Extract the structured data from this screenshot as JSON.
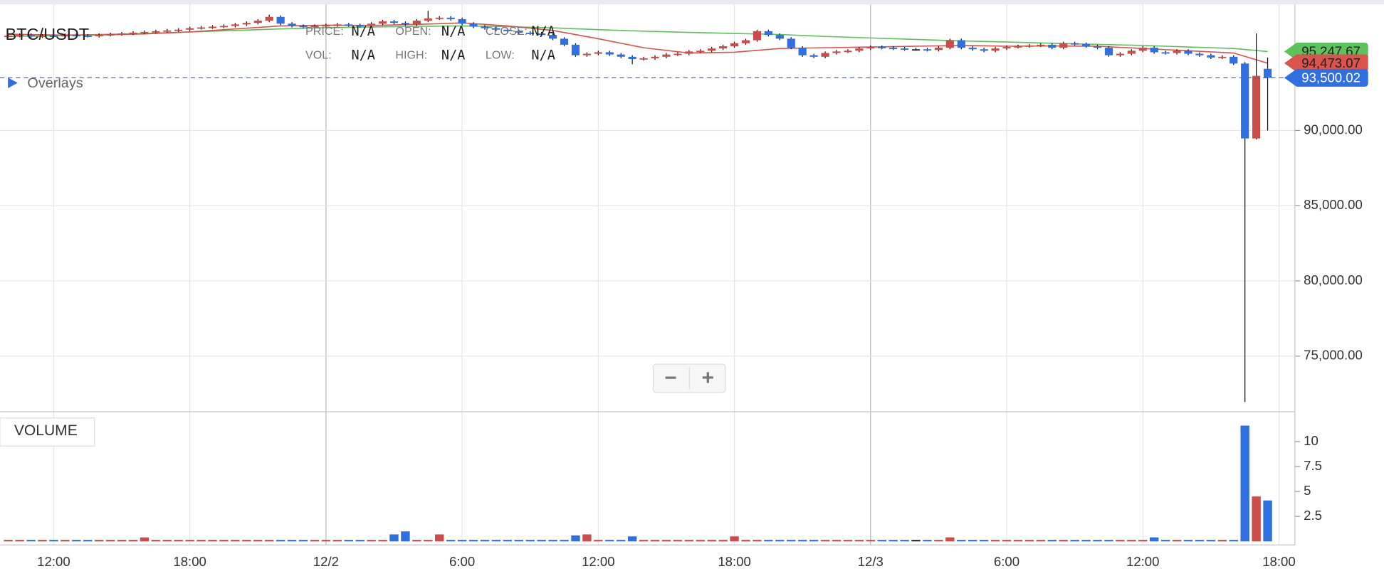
{
  "chart_data": {
    "type": "candlestick",
    "title": "BTC/USDT",
    "info": [
      [
        {
          "label": "PRICE:",
          "value": "N/A"
        },
        {
          "label": "OPEN:",
          "value": "N/A"
        },
        {
          "label": "CLOSE:",
          "value": "N/A"
        }
      ],
      [
        {
          "label": "VOL:",
          "value": "N/A"
        },
        {
          "label": "HIGH:",
          "value": "N/A"
        },
        {
          "label": "LOW:",
          "value": "N/A"
        }
      ]
    ],
    "overlays_label": "Overlays",
    "zoom": [
      "−",
      "+"
    ],
    "up_color": "#cc4b4b",
    "down_color": "#2f6fe0",
    "flat_color": "#222222",
    "xlim": [
      "12/1 09:38",
      "12/3 18:42"
    ],
    "xticks": [
      {
        "value": "12/1 12:00",
        "label": "12:00"
      },
      {
        "value": "12/1 18:00",
        "label": "18:00"
      },
      {
        "value": "12/2 00:00",
        "label": "12/2"
      },
      {
        "value": "12/2 06:00",
        "label": "6:00"
      },
      {
        "value": "12/2 12:00",
        "label": "12:00"
      },
      {
        "value": "12/2 18:00",
        "label": "18:00"
      },
      {
        "value": "12/3 00:00",
        "label": "12/3"
      },
      {
        "value": "12/3 06:00",
        "label": "6:00"
      },
      {
        "value": "12/3 12:00",
        "label": "12:00"
      },
      {
        "value": "12/3 18:00",
        "label": "18:00"
      }
    ],
    "ylim": [
      71360,
      98380
    ],
    "yticks": [
      {
        "value": 75000,
        "label": "75,000.00"
      },
      {
        "value": 80000,
        "label": "80,000.00"
      },
      {
        "value": 85000,
        "label": "85,000.00"
      },
      {
        "value": 90000,
        "label": "90,000.00"
      }
    ],
    "x": [
      "12/1 10:00",
      "12/1 10:30",
      "12/1 11:00",
      "12/1 11:30",
      "12/1 12:00",
      "12/1 12:30",
      "12/1 13:00",
      "12/1 13:30",
      "12/1 14:00",
      "12/1 14:30",
      "12/1 15:00",
      "12/1 15:30",
      "12/1 16:00",
      "12/1 16:30",
      "12/1 17:00",
      "12/1 17:30",
      "12/1 18:00",
      "12/1 18:30",
      "12/1 19:00",
      "12/1 19:30",
      "12/1 20:00",
      "12/1 20:30",
      "12/1 21:00",
      "12/1 21:30",
      "12/1 22:00",
      "12/1 22:30",
      "12/1 23:00",
      "12/1 23:30",
      "12/2 00:00",
      "12/2 00:30",
      "12/2 01:00",
      "12/2 01:30",
      "12/2 02:00",
      "12/2 02:30",
      "12/2 03:00",
      "12/2 03:30",
      "12/2 04:00",
      "12/2 04:30",
      "12/2 05:00",
      "12/2 05:30",
      "12/2 06:00",
      "12/2 06:30",
      "12/2 07:00",
      "12/2 07:30",
      "12/2 08:00",
      "12/2 08:30",
      "12/2 09:00",
      "12/2 09:30",
      "12/2 10:00",
      "12/2 10:30",
      "12/2 11:00",
      "12/2 11:30",
      "12/2 12:00",
      "12/2 12:30",
      "12/2 13:00",
      "12/2 13:30",
      "12/2 14:00",
      "12/2 14:30",
      "12/2 15:00",
      "12/2 15:30",
      "12/2 16:00",
      "12/2 16:30",
      "12/2 17:00",
      "12/2 17:30",
      "12/2 18:00",
      "12/2 18:30",
      "12/2 19:00",
      "12/2 19:30",
      "12/2 20:00",
      "12/2 20:30",
      "12/2 21:00",
      "12/2 21:30",
      "12/2 22:00",
      "12/2 22:30",
      "12/2 23:00",
      "12/2 23:30",
      "12/3 00:00",
      "12/3 00:30",
      "12/3 01:00",
      "12/3 01:30",
      "12/3 02:00",
      "12/3 02:30",
      "12/3 03:00",
      "12/3 03:30",
      "12/3 04:00",
      "12/3 04:30",
      "12/3 05:00",
      "12/3 05:30",
      "12/3 06:00",
      "12/3 06:30",
      "12/3 07:00",
      "12/3 07:30",
      "12/3 08:00",
      "12/3 08:30",
      "12/3 09:00",
      "12/3 09:30",
      "12/3 10:00",
      "12/3 10:30",
      "12/3 11:00",
      "12/3 11:30",
      "12/3 12:00",
      "12/3 12:30",
      "12/3 13:00",
      "12/3 13:30",
      "12/3 14:00",
      "12/3 14:30",
      "12/3 15:00",
      "12/3 15:30",
      "12/3 16:00",
      "12/3 16:30",
      "12/3 17:00",
      "12/3 17:30"
    ],
    "open": [
      96280,
      96300,
      96350,
      96250,
      96300,
      96250,
      96350,
      96300,
      96280,
      96350,
      96400,
      96450,
      96500,
      96550,
      96600,
      96650,
      96700,
      96800,
      96850,
      96900,
      96950,
      97050,
      97150,
      97300,
      97550,
      97100,
      96950,
      96900,
      96950,
      97000,
      97050,
      97000,
      96950,
      97100,
      97250,
      97150,
      97050,
      97300,
      97450,
      97500,
      97400,
      97100,
      96900,
      96800,
      96700,
      96600,
      96500,
      96450,
      96350,
      96100,
      95700,
      95000,
      95100,
      95200,
      95050,
      94900,
      94750,
      94800,
      94900,
      95050,
      95100,
      95250,
      95300,
      95450,
      95600,
      95800,
      96000,
      96600,
      96350,
      96100,
      95500,
      95000,
      94900,
      95150,
      95250,
      95300,
      95450,
      95550,
      95500,
      95450,
      95400,
      95400,
      95350,
      95500,
      96000,
      95500,
      95400,
      95300,
      95450,
      95550,
      95600,
      95650,
      95700,
      95500,
      95800,
      95750,
      95600,
      95500,
      95000,
      95100,
      95300,
      95500,
      95200,
      95150,
      95300,
      95100,
      95000,
      94850,
      94900,
      94450,
      89470,
      94100
    ],
    "high": [
      96400,
      96450,
      96450,
      96400,
      96400,
      96450,
      96450,
      96400,
      96450,
      96500,
      96550,
      96600,
      96650,
      96700,
      96750,
      96800,
      96900,
      96950,
      97000,
      97050,
      97150,
      97250,
      97400,
      97700,
      97650,
      97200,
      97050,
      97050,
      97100,
      97150,
      97150,
      97100,
      97200,
      97350,
      97350,
      97250,
      97400,
      97950,
      97600,
      97600,
      97500,
      97200,
      97000,
      96900,
      96800,
      96700,
      96600,
      96550,
      96450,
      96200,
      95800,
      95200,
      95300,
      95300,
      95150,
      95000,
      94900,
      95000,
      95150,
      95200,
      95350,
      95400,
      95550,
      95700,
      95900,
      96100,
      96700,
      96700,
      96450,
      96200,
      95600,
      95100,
      95250,
      95350,
      95400,
      95550,
      95650,
      95650,
      95600,
      95550,
      95500,
      95500,
      95600,
      96100,
      96100,
      95600,
      95500,
      95550,
      95650,
      95700,
      95750,
      95800,
      95800,
      95900,
      95900,
      95850,
      95700,
      95600,
      95200,
      95400,
      95600,
      95600,
      95300,
      95400,
      95400,
      95200,
      95100,
      95000,
      95000,
      94550,
      96450,
      94850
    ],
    "low": [
      96180,
      96200,
      96150,
      96150,
      96150,
      96150,
      96200,
      96180,
      96180,
      96250,
      96300,
      96350,
      96400,
      96450,
      96500,
      96550,
      96600,
      96700,
      96750,
      96800,
      96850,
      96950,
      97050,
      97200,
      97000,
      96850,
      96800,
      96800,
      96850,
      96900,
      96900,
      96850,
      96850,
      97000,
      97050,
      96950,
      96950,
      97200,
      97350,
      97300,
      97000,
      96800,
      96700,
      96600,
      96500,
      96400,
      96350,
      96250,
      96000,
      95600,
      94900,
      94900,
      95000,
      94950,
      94800,
      94400,
      94650,
      94700,
      94800,
      94950,
      95000,
      95150,
      95200,
      95350,
      95500,
      95700,
      95900,
      96250,
      96000,
      95400,
      94900,
      94800,
      94800,
      95050,
      95150,
      95200,
      95350,
      95400,
      95350,
      95300,
      95300,
      95250,
      95250,
      95400,
      95400,
      95300,
      95200,
      95200,
      95350,
      95450,
      95500,
      95550,
      95400,
      95400,
      95650,
      95500,
      95400,
      94900,
      94900,
      95000,
      95200,
      95100,
      95050,
      95050,
      95000,
      94900,
      94750,
      94750,
      94350,
      71950,
      89400,
      90000
    ],
    "close": [
      96300,
      96350,
      96250,
      96300,
      96250,
      96350,
      96300,
      96280,
      96350,
      96400,
      96450,
      96500,
      96550,
      96600,
      96650,
      96700,
      96800,
      96850,
      96900,
      96950,
      97050,
      97150,
      97300,
      97550,
      97100,
      96950,
      96900,
      96950,
      97000,
      97050,
      97000,
      96950,
      97100,
      97250,
      97150,
      97050,
      97300,
      97450,
      97500,
      97400,
      97100,
      96900,
      96800,
      96700,
      96600,
      96500,
      96450,
      96350,
      96100,
      95700,
      95000,
      95100,
      95200,
      95050,
      94900,
      94750,
      94800,
      94900,
      95050,
      95100,
      95250,
      95300,
      95450,
      95600,
      95800,
      96000,
      96600,
      96350,
      96100,
      95500,
      95000,
      94900,
      95150,
      95250,
      95300,
      95450,
      95550,
      95500,
      95450,
      95400,
      95400,
      95350,
      95500,
      96000,
      95500,
      95400,
      95300,
      95450,
      95550,
      95600,
      95650,
      95700,
      95500,
      95800,
      95750,
      95600,
      95500,
      95000,
      95100,
      95300,
      95500,
      95200,
      95150,
      95300,
      95100,
      95000,
      94850,
      94900,
      94450,
      89470,
      93630,
      93500
    ],
    "overlays": [
      {
        "color": "#5cc25c",
        "x": [
          "12/1 10:00",
          "12/1 12:00",
          "12/1 14:00",
          "12/1 16:00",
          "12/1 18:00",
          "12/1 20:00",
          "12/1 22:00",
          "12/2 00:00",
          "12/2 02:00",
          "12/2 04:00",
          "12/2 06:00",
          "12/2 08:00",
          "12/2 10:00",
          "12/2 12:00",
          "12/2 14:00",
          "12/2 16:00",
          "12/2 18:00",
          "12/2 20:00",
          "12/2 22:00",
          "12/3 00:00",
          "12/3 02:00",
          "12/3 04:00",
          "12/3 06:00",
          "12/3 08:00",
          "12/3 10:00",
          "12/3 12:00",
          "12/3 14:00",
          "12/3 16:00",
          "12/3 17:30"
        ],
        "values": [
          96250,
          96300,
          96380,
          96450,
          96550,
          96650,
          96750,
          96830,
          96880,
          96920,
          96950,
          96900,
          96820,
          96700,
          96600,
          96520,
          96450,
          96380,
          96250,
          96150,
          96050,
          95950,
          95880,
          95800,
          95720,
          95650,
          95550,
          95450,
          95247.67
        ],
        "last_label": "95,247.67"
      },
      {
        "color": "#d9534f",
        "x": [
          "12/1 10:00",
          "12/1 12:00",
          "12/1 14:00",
          "12/1 16:00",
          "12/1 18:00",
          "12/1 20:00",
          "12/1 22:00",
          "12/2 00:00",
          "12/2 02:00",
          "12/2 04:00",
          "12/2 06:00",
          "12/2 08:00",
          "12/2 10:00",
          "12/2 12:00",
          "12/2 14:00",
          "12/2 16:00",
          "12/2 18:00",
          "12/2 20:00",
          "12/2 22:00",
          "12/3 00:00",
          "12/3 02:00",
          "12/3 04:00",
          "12/3 06:00",
          "12/3 08:00",
          "12/3 10:00",
          "12/3 12:00",
          "12/3 14:00",
          "12/3 16:00",
          "12/3 17:30"
        ],
        "values": [
          96400,
          96350,
          96350,
          96420,
          96550,
          96750,
          96950,
          97000,
          96980,
          97050,
          97150,
          96950,
          96650,
          96100,
          95500,
          95150,
          95200,
          95450,
          95500,
          95550,
          95600,
          95650,
          95600,
          95620,
          95600,
          95450,
          95300,
          95150,
          94473.07
        ],
        "last_label": "94,473.07"
      }
    ],
    "last_price": {
      "value": 93500.02,
      "label": "93,500.02",
      "color": "#2f6fe0"
    },
    "volume": {
      "title": "VOLUME",
      "ylim": [
        0,
        12.9
      ],
      "yticks": [
        2.5,
        5,
        7.5,
        10
      ],
      "values": [
        0.15,
        0.15,
        0.15,
        0.15,
        0.15,
        0.15,
        0.15,
        0.15,
        0.15,
        0.15,
        0.15,
        0.15,
        0.4,
        0.15,
        0.15,
        0.15,
        0.15,
        0.15,
        0.15,
        0.15,
        0.15,
        0.15,
        0.15,
        0.15,
        0.15,
        0.15,
        0.15,
        0.15,
        0.15,
        0.15,
        0.15,
        0.15,
        0.15,
        0.15,
        0.7,
        1.0,
        0.15,
        0.15,
        0.7,
        0.15,
        0.15,
        0.15,
        0.15,
        0.15,
        0.15,
        0.15,
        0.15,
        0.15,
        0.15,
        0.15,
        0.6,
        0.7,
        0.15,
        0.15,
        0.15,
        0.5,
        0.15,
        0.15,
        0.15,
        0.15,
        0.15,
        0.15,
        0.15,
        0.15,
        0.5,
        0.15,
        0.15,
        0.15,
        0.15,
        0.15,
        0.15,
        0.15,
        0.15,
        0.15,
        0.15,
        0.15,
        0.15,
        0.15,
        0.15,
        0.15,
        0.15,
        0.15,
        0.15,
        0.4,
        0.15,
        0.15,
        0.15,
        0.15,
        0.15,
        0.15,
        0.15,
        0.15,
        0.15,
        0.15,
        0.15,
        0.15,
        0.15,
        0.15,
        0.15,
        0.15,
        0.15,
        0.4,
        0.15,
        0.15,
        0.15,
        0.15,
        0.15,
        0.15,
        0.15,
        11.6,
        4.5,
        4.1
      ]
    }
  }
}
